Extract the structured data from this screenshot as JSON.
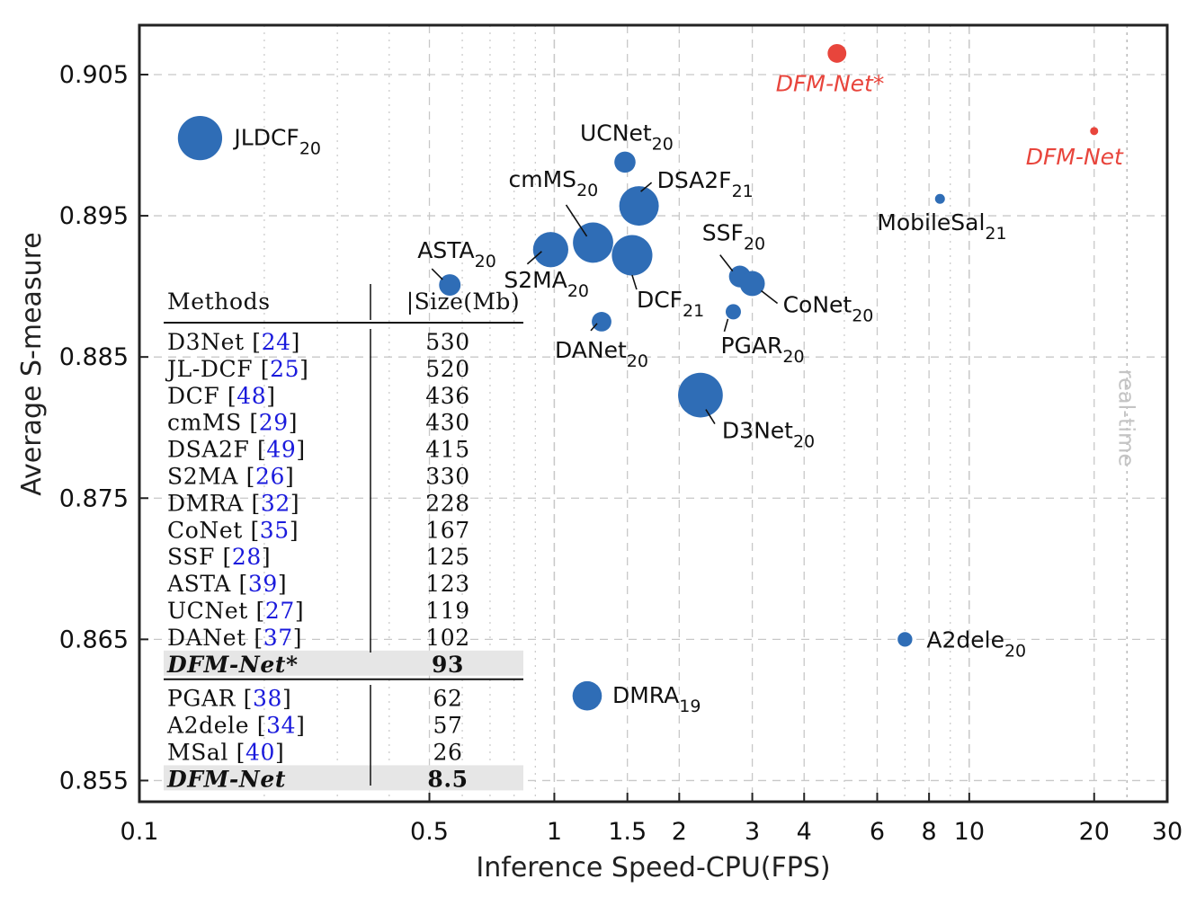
{
  "chart_data": {
    "type": "scatter",
    "xlabel": "Inference Speed-CPU(FPS)",
    "ylabel": "Average S-measure",
    "xscale": "log",
    "xlim": [
      0.1,
      30
    ],
    "ylim": [
      0.8535,
      0.9085
    ],
    "xticks": [
      {
        "value": 0.1,
        "label": "0.1"
      },
      {
        "value": 0.5,
        "label": "0.5"
      },
      {
        "value": 1,
        "label": "1"
      },
      {
        "value": 1.5,
        "label": "1.5"
      },
      {
        "value": 2,
        "label": "2"
      },
      {
        "value": 3,
        "label": "3"
      },
      {
        "value": 4,
        "label": "4"
      },
      {
        "value": 6,
        "label": "6"
      },
      {
        "value": 8,
        "label": "8"
      },
      {
        "value": 10,
        "label": "10"
      },
      {
        "value": 20,
        "label": "20"
      },
      {
        "value": 30,
        "label": "30"
      }
    ],
    "yticks": [
      {
        "value": 0.855,
        "label": "0.855"
      },
      {
        "value": 0.865,
        "label": "0.865"
      },
      {
        "value": 0.875,
        "label": "0.875"
      },
      {
        "value": 0.885,
        "label": "0.885"
      },
      {
        "value": 0.895,
        "label": "0.895"
      },
      {
        "value": 0.905,
        "label": "0.905"
      }
    ],
    "minor_gridlines_x": [
      0.2,
      0.3,
      0.4,
      0.6,
      0.7,
      0.8,
      0.9,
      5,
      7,
      9
    ],
    "major_gridlines_x": [
      1,
      10
    ],
    "realtime_line": {
      "x": 24,
      "label": "real-time"
    },
    "points": [
      {
        "name": "JLDCF",
        "sub": "20",
        "fps": 0.14,
        "s": 0.9005,
        "size_mb": 520,
        "color": "#2f6db6"
      },
      {
        "name": "UCNet",
        "sub": "20",
        "fps": 1.48,
        "s": 0.8988,
        "size_mb": 119,
        "color": "#2f6db6"
      },
      {
        "name": "DSA2F",
        "sub": "21",
        "fps": 1.6,
        "s": 0.8957,
        "size_mb": 415,
        "color": "#2f6db6"
      },
      {
        "name": "cmMS",
        "sub": "20",
        "fps": 1.24,
        "s": 0.8931,
        "size_mb": 430,
        "color": "#2f6db6"
      },
      {
        "name": "S2MA",
        "sub": "20",
        "fps": 0.98,
        "s": 0.8926,
        "size_mb": 330,
        "color": "#2f6db6"
      },
      {
        "name": "DCF",
        "sub": "21",
        "fps": 1.54,
        "s": 0.8922,
        "size_mb": 436,
        "color": "#2f6db6"
      },
      {
        "name": "ASTA",
        "sub": "20",
        "fps": 0.56,
        "s": 0.8901,
        "size_mb": 123,
        "color": "#2f6db6"
      },
      {
        "name": "DANet",
        "sub": "20",
        "fps": 1.3,
        "s": 0.8875,
        "size_mb": 102,
        "color": "#2f6db6"
      },
      {
        "name": "SSF",
        "sub": "20",
        "fps": 2.8,
        "s": 0.8907,
        "size_mb": 125,
        "color": "#2f6db6"
      },
      {
        "name": "CoNet",
        "sub": "20",
        "fps": 3.0,
        "s": 0.8902,
        "size_mb": 167,
        "color": "#2f6db6"
      },
      {
        "name": "PGAR",
        "sub": "20",
        "fps": 2.7,
        "s": 0.8882,
        "size_mb": 62,
        "color": "#2f6db6"
      },
      {
        "name": "D3Net",
        "sub": "20",
        "fps": 2.25,
        "s": 0.8823,
        "size_mb": 530,
        "color": "#2f6db6"
      },
      {
        "name": "MobileSal",
        "sub": "21",
        "fps": 8.5,
        "s": 0.8962,
        "size_mb": 26,
        "color": "#2f6db6"
      },
      {
        "name": "A2dele",
        "sub": "20",
        "fps": 7.0,
        "s": 0.865,
        "size_mb": 57,
        "color": "#2f6db6"
      },
      {
        "name": "DMRA",
        "sub": "19",
        "fps": 1.2,
        "s": 0.861,
        "size_mb": 228,
        "color": "#2f6db6"
      },
      {
        "name": "DFM-Net*",
        "sub": "",
        "fps": 4.8,
        "s": 0.9065,
        "size_mb": 93,
        "color": "#e8453c"
      },
      {
        "name": "DFM-Net",
        "sub": "",
        "fps": 20,
        "s": 0.901,
        "size_mb": 8.5,
        "color": "#e8453c"
      }
    ],
    "table": {
      "headers": [
        "Methods",
        "|Size(Mb)"
      ],
      "rows": [
        {
          "method": "D3Net",
          "ref": "24",
          "size": "530",
          "highlight": false
        },
        {
          "method": "JL-DCF",
          "ref": "25",
          "size": "520",
          "highlight": false
        },
        {
          "method": "DCF",
          "ref": "48",
          "size": "436",
          "highlight": false
        },
        {
          "method": "cmMS",
          "ref": "29",
          "size": "430",
          "highlight": false
        },
        {
          "method": "DSA2F",
          "ref": "49",
          "size": "415",
          "highlight": false
        },
        {
          "method": "S2MA",
          "ref": "26",
          "size": "330",
          "highlight": false
        },
        {
          "method": "DMRA",
          "ref": "32",
          "size": "228",
          "highlight": false
        },
        {
          "method": "CoNet",
          "ref": "35",
          "size": "167",
          "highlight": false
        },
        {
          "method": "SSF",
          "ref": "28",
          "size": "125",
          "highlight": false
        },
        {
          "method": "ASTA",
          "ref": "39",
          "size": "123",
          "highlight": false
        },
        {
          "method": "UCNet",
          "ref": "27",
          "size": "119",
          "highlight": false
        },
        {
          "method": "DANet",
          "ref": "37",
          "size": "102",
          "highlight": false
        },
        {
          "method": "DFM-Net*",
          "ref": "",
          "size": "93",
          "highlight": true
        },
        {
          "method": "PGAR",
          "ref": "38",
          "size": "62",
          "highlight": false
        },
        {
          "method": "A2dele",
          "ref": "34",
          "size": "57",
          "highlight": false
        },
        {
          "method": "MSal",
          "ref": "40",
          "size": "26",
          "highlight": false
        },
        {
          "method": "DFM-Net",
          "ref": "",
          "size": "8.5",
          "highlight": true
        }
      ]
    }
  },
  "colors": {
    "point_blue": "#2f6db6",
    "point_red": "#e8453c",
    "ref_blue": "#1a1adc",
    "grid": "#c8c8c8",
    "realtime": "#bbbbbb",
    "highlight_bg": "#e6e6e6"
  }
}
